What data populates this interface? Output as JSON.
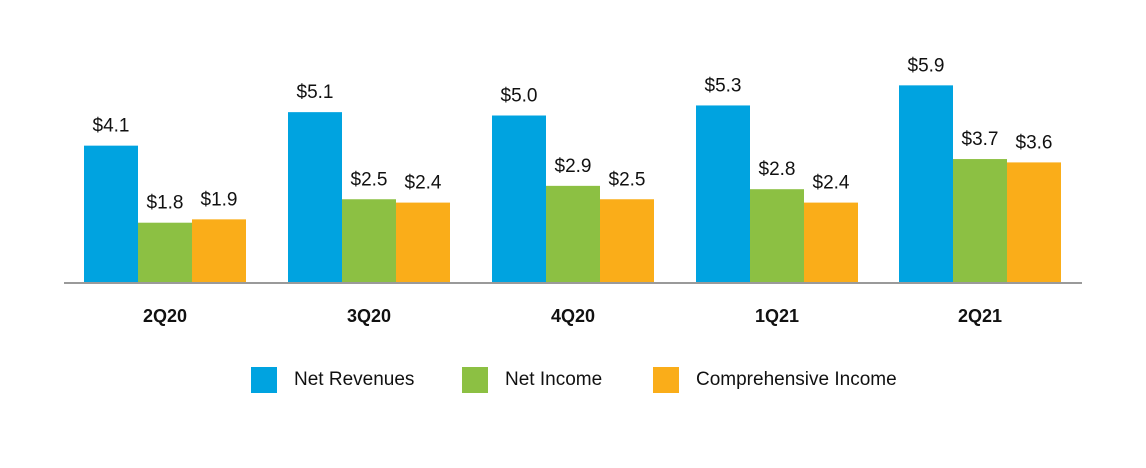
{
  "chart_data": {
    "type": "bar",
    "categories": [
      "2Q20",
      "3Q20",
      "4Q20",
      "1Q21",
      "2Q21"
    ],
    "series": [
      {
        "name": "Net Revenues",
        "color": "#00a3e0",
        "values": [
          4.1,
          5.1,
          5.0,
          5.3,
          5.9
        ],
        "labels": [
          "$4.1",
          "$5.1",
          "$5.0",
          "$5.3",
          "$5.9"
        ]
      },
      {
        "name": "Net Income",
        "color": "#8cc043",
        "values": [
          1.8,
          2.5,
          2.9,
          2.8,
          3.7
        ],
        "labels": [
          "$1.8",
          "$2.5",
          "$2.9",
          "$2.8",
          "$3.7"
        ]
      },
      {
        "name": "Comprehensive Income",
        "color": "#faad19",
        "values": [
          1.9,
          2.4,
          2.5,
          2.4,
          3.6
        ],
        "labels": [
          "$1.9",
          "$2.4",
          "$2.5",
          "$2.4",
          "$3.6"
        ]
      }
    ],
    "ylim": [
      0,
      7
    ],
    "grid": false,
    "legend_position": "bottom"
  }
}
